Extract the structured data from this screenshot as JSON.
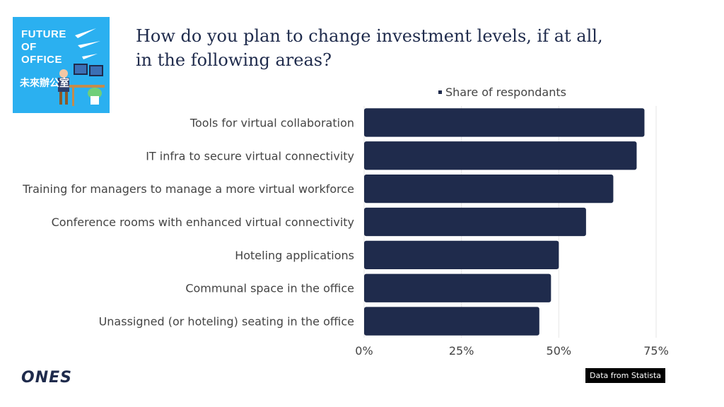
{
  "logo": {
    "line1": "FUTURE",
    "line2": "OF",
    "line3": "OFFICE",
    "chinese": "未來辦公室"
  },
  "title": "How do you plan to change investment levels, if at all,\nin the following areas?",
  "legend": {
    "label": "Share of respondants"
  },
  "chart_data": {
    "type": "bar",
    "orientation": "horizontal",
    "categories": [
      "Tools for virtual collaboration",
      "IT infra to secure virtual connectivity",
      "Training for managers to manage a more virtual workforce",
      "Conference rooms with enhanced virtual connectivity",
      "Hoteling applications",
      "Communal space in the office",
      "Unassigned (or hoteling) seating in the office"
    ],
    "series": [
      {
        "name": "Share of respondants",
        "values": [
          72,
          70,
          64,
          57,
          50,
          48,
          45
        ]
      }
    ],
    "xlim": [
      0,
      75
    ],
    "xticks": [
      0,
      25,
      50,
      75
    ],
    "xtick_labels": [
      "0%",
      "25%",
      "50%",
      "75%"
    ],
    "grid": true,
    "legend_position": "top",
    "bar_color": "#1f2b4c"
  },
  "footer": {
    "brand": "ONES",
    "source": "Data from Statista"
  }
}
